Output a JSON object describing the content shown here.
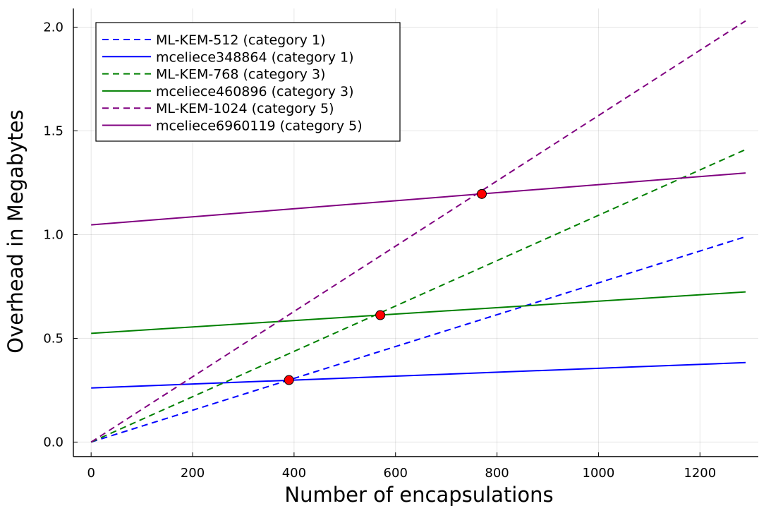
{
  "chart_data": {
    "type": "line",
    "title": "",
    "xlabel": "Number of encapsulations",
    "ylabel": "Overhead in Megabytes",
    "xlim": [
      -35,
      1315
    ],
    "ylim": [
      -0.07,
      2.09
    ],
    "xticks": [
      0,
      200,
      400,
      600,
      800,
      1000,
      1200
    ],
    "xtick_labels": [
      "0",
      "200",
      "400",
      "600",
      "800",
      "1000",
      "1200"
    ],
    "yticks": [
      0,
      0.5,
      1.0,
      1.5,
      2.0
    ],
    "ytick_labels": [
      "0.0",
      "0.5",
      "1.0",
      "1.5",
      "2.0"
    ],
    "grid": true,
    "legend_position": "top-left",
    "series": [
      {
        "name": "ML-KEM-512 (category 1)",
        "style": "dashed",
        "color": "#0000ff",
        "x": [
          0,
          1290
        ],
        "y": [
          0,
          0.99
        ]
      },
      {
        "name": "mceliece348864 (category 1)",
        "style": "solid",
        "color": "#0000ff",
        "x": [
          0,
          1290
        ],
        "y": [
          0.261,
          0.383
        ]
      },
      {
        "name": "ML-KEM-768 (category 3)",
        "style": "dashed",
        "color": "#008000",
        "x": [
          0,
          1290
        ],
        "y": [
          0,
          1.41
        ]
      },
      {
        "name": "mceliece460896 (category 3)",
        "style": "solid",
        "color": "#008000",
        "x": [
          0,
          1290
        ],
        "y": [
          0.524,
          0.724
        ]
      },
      {
        "name": "ML-KEM-1024 (category 5)",
        "style": "dashed",
        "color": "#800080",
        "x": [
          0,
          1290
        ],
        "y": [
          0,
          2.03
        ]
      },
      {
        "name": "mceliece6960119 (category 5)",
        "style": "solid",
        "color": "#800080",
        "x": [
          0,
          1290
        ],
        "y": [
          1.047,
          1.297
        ]
      }
    ],
    "markers": {
      "color": "#ff0000",
      "points": [
        {
          "x": 390,
          "y": 0.299
        },
        {
          "x": 570,
          "y": 0.612
        },
        {
          "x": 770,
          "y": 1.196
        }
      ]
    }
  }
}
